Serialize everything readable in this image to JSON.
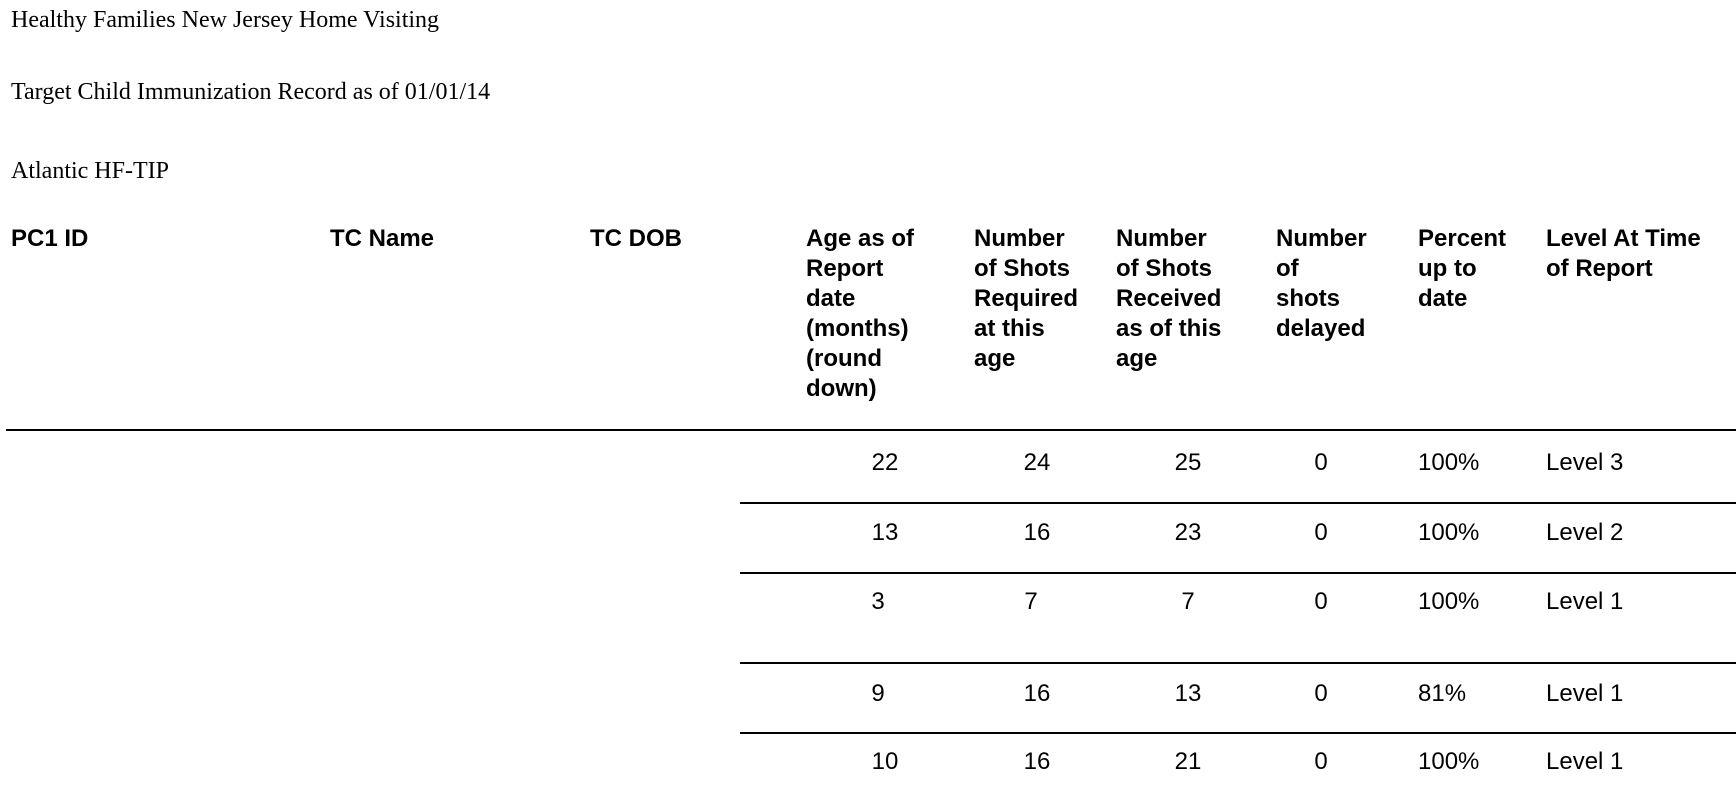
{
  "report": {
    "org_title": "Healthy Families New Jersey Home Visiting",
    "record_title": "Target Child Immunization Record as of 01/01/14",
    "site": "Atlantic HF-TIP"
  },
  "table": {
    "headers": [
      "PC1 ID",
      "TC Name",
      "TC DOB",
      "Age as of\nReport\ndate\n(months)\n(round\ndown)",
      "Number\nof Shots\nRequired\nat this\nage",
      "Number\nof Shots\nReceived\nas of this\nage",
      "Number\nof\nshots\ndelayed",
      "Percent\nup to\ndate",
      "Level At Time\nof Report"
    ],
    "rows": [
      {
        "pc1_id": "",
        "tc_name": "",
        "tc_dob": "",
        "age_months": "22",
        "required": "24",
        "received": "25",
        "delayed": "0",
        "percent": "100%",
        "level": "Level 3"
      },
      {
        "pc1_id": "",
        "tc_name": "",
        "tc_dob": "",
        "age_months": "13",
        "required": "16",
        "received": "23",
        "delayed": "0",
        "percent": "100%",
        "level": "Level 2"
      },
      {
        "pc1_id": "",
        "tc_name": "",
        "tc_dob": "",
        "age_months": "3",
        "required": "7",
        "received": "7",
        "delayed": "0",
        "percent": "100%",
        "level": "Level 1"
      },
      {
        "pc1_id": "",
        "tc_name": "",
        "tc_dob": "",
        "age_months": "9",
        "required": "16",
        "received": "13",
        "delayed": "0",
        "percent": "81%",
        "level": "Level 1"
      },
      {
        "pc1_id": "",
        "tc_name": "",
        "tc_dob": "",
        "age_months": "10",
        "required": "16",
        "received": "21",
        "delayed": "0",
        "percent": "100%",
        "level": "Level 1"
      }
    ]
  }
}
